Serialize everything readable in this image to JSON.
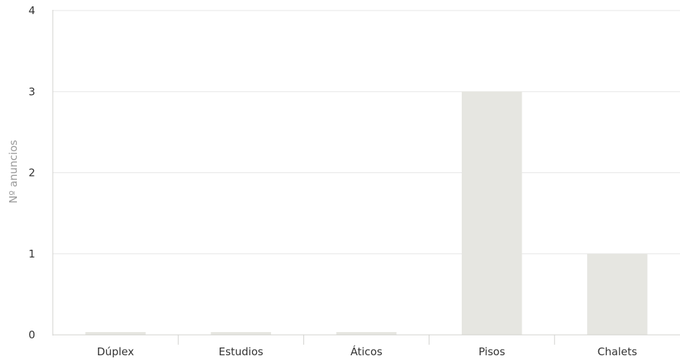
{
  "chart_data": {
    "type": "bar",
    "categories": [
      "Dúplex",
      "Estudios",
      "Áticos",
      "Pisos",
      "Chalets"
    ],
    "values": [
      0,
      0,
      0,
      3,
      1
    ],
    "ylabel": "Nº anuncios",
    "ylim": [
      0,
      4
    ],
    "yticks": [
      0,
      1,
      2,
      3,
      4
    ],
    "grid": true,
    "legend": "none",
    "colors": {
      "bar": "#e6e6e1",
      "grid": "#e6e6e6",
      "axis": "#d0d0cc",
      "tick_text": "#333333",
      "ylabel_text": "#9a9a9a"
    }
  }
}
